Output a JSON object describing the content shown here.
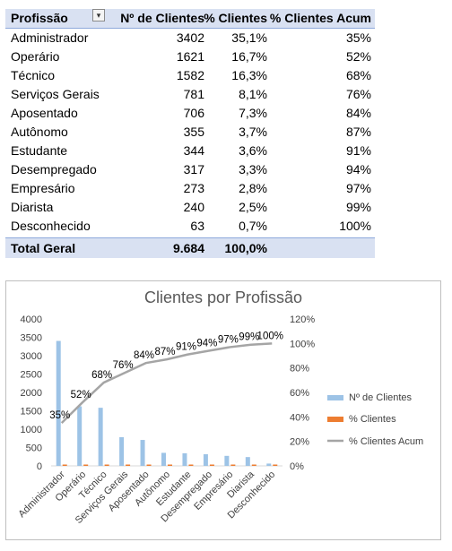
{
  "table": {
    "headers": [
      "Profissão",
      "Nº de Clientes",
      "% Clientes",
      "% Clientes Acum"
    ],
    "rows": [
      [
        "Administrador",
        "3402",
        "35,1%",
        "35%"
      ],
      [
        "Operário",
        "1621",
        "16,7%",
        "52%"
      ],
      [
        "Técnico",
        "1582",
        "16,3%",
        "68%"
      ],
      [
        "Serviços Gerais",
        "781",
        "8,1%",
        "76%"
      ],
      [
        "Aposentado",
        "706",
        "7,3%",
        "84%"
      ],
      [
        "Autônomo",
        "355",
        "3,7%",
        "87%"
      ],
      [
        "Estudante",
        "344",
        "3,6%",
        "91%"
      ],
      [
        "Desempregado",
        "317",
        "3,3%",
        "94%"
      ],
      [
        "Empresário",
        "273",
        "2,8%",
        "97%"
      ],
      [
        "Diarista",
        "240",
        "2,5%",
        "99%"
      ],
      [
        "Desconhecido",
        "63",
        "0,7%",
        "100%"
      ]
    ],
    "total": [
      "Total Geral",
      "9.684",
      "100,0%",
      ""
    ]
  },
  "chart_data": {
    "type": "bar",
    "title": "Clientes por Profissão",
    "categories": [
      "Administrador",
      "Operário",
      "Técnico",
      "Serviços Gerais",
      "Aposentado",
      "Autônomo",
      "Estudante",
      "Desempregado",
      "Empresário",
      "Diarista",
      "Desconhecido"
    ],
    "series": [
      {
        "name": "Nº de Clientes",
        "type": "bar",
        "axis": "left",
        "color": "#9dc3e6",
        "values": [
          3402,
          1621,
          1582,
          781,
          706,
          355,
          344,
          317,
          273,
          240,
          63
        ]
      },
      {
        "name": "% Clientes",
        "type": "bar",
        "axis": "left",
        "color": "#ed7d31",
        "values": [
          35.1,
          16.7,
          16.3,
          8.1,
          7.3,
          3.7,
          3.6,
          3.3,
          2.8,
          2.5,
          0.7
        ]
      },
      {
        "name": "% Clientes Acum",
        "type": "line",
        "axis": "right",
        "color": "#a5a5a5",
        "values": [
          35,
          52,
          68,
          76,
          84,
          87,
          91,
          94,
          97,
          99,
          100
        ],
        "labels": [
          "35%",
          "52%",
          "68%",
          "76%",
          "84%",
          "87%",
          "91%",
          "94%",
          "97%",
          "99%",
          "100%"
        ]
      }
    ],
    "y_left": {
      "min": 0,
      "max": 4000,
      "ticks": [
        "0",
        "500",
        "1000",
        "1500",
        "2000",
        "2500",
        "3000",
        "3500",
        "4000"
      ]
    },
    "y_right": {
      "min": 0,
      "max": 120,
      "ticks": [
        "0%",
        "20%",
        "40%",
        "60%",
        "80%",
        "100%",
        "120%"
      ]
    },
    "legend": "right",
    "grid": false
  }
}
